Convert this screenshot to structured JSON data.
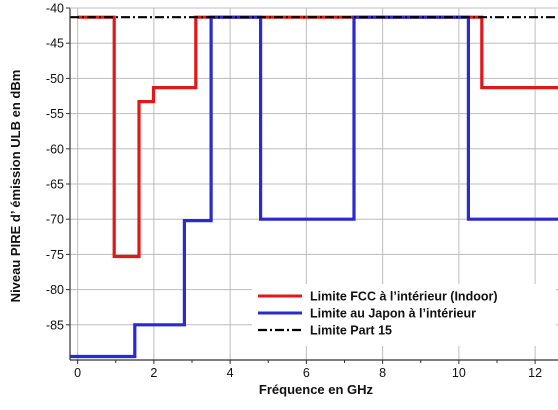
{
  "chart_data": {
    "type": "line",
    "xlabel": "Fréquence en GHz",
    "ylabel": "Niveau PIRE d’ émission ULB en dBm",
    "xlim": [
      -0.2,
      12.6
    ],
    "ylim": [
      -90,
      -40
    ],
    "x_ticks": [
      0,
      2,
      4,
      6,
      8,
      10,
      12
    ],
    "y_ticks": [
      -40,
      -45,
      -50,
      -55,
      -60,
      -65,
      -70,
      -75,
      -80,
      -85
    ],
    "x_tick_labels": [
      "0",
      "2",
      "4",
      "6",
      "8",
      "10",
      "12"
    ],
    "y_tick_labels": [
      "-40",
      "-45",
      "-50",
      "-55",
      "-60",
      "-65",
      "-70",
      "-75",
      "-80",
      "-85"
    ],
    "grid": true,
    "legend_position": "lower-right",
    "series": [
      {
        "name": "Limite FCC à l’intérieur (Indoor)",
        "color": "#e01818",
        "style": "solid",
        "points": [
          [
            0,
            -41.3
          ],
          [
            0.96,
            -41.3
          ],
          [
            0.96,
            -75.3
          ],
          [
            1.61,
            -75.3
          ],
          [
            1.61,
            -53.3
          ],
          [
            1.99,
            -53.3
          ],
          [
            1.99,
            -51.3
          ],
          [
            3.1,
            -51.3
          ],
          [
            3.1,
            -41.3
          ],
          [
            10.6,
            -41.3
          ],
          [
            10.6,
            -51.3
          ],
          [
            12.6,
            -51.3
          ]
        ]
      },
      {
        "name": "Limite au Japon à l’intérieur",
        "color": "#2a2ad0",
        "style": "solid",
        "points": [
          [
            -0.2,
            -89.5
          ],
          [
            1.5,
            -89.5
          ],
          [
            1.5,
            -85
          ],
          [
            2.8,
            -85
          ],
          [
            2.8,
            -70.2
          ],
          [
            3.5,
            -70.2
          ],
          [
            3.5,
            -41.3
          ],
          [
            4.8,
            -41.3
          ],
          [
            4.8,
            -70
          ],
          [
            7.25,
            -70
          ],
          [
            7.25,
            -41.3
          ],
          [
            10.25,
            -41.3
          ],
          [
            10.25,
            -70
          ],
          [
            12.6,
            -70
          ]
        ]
      },
      {
        "name": "Limite Part 15",
        "color": "#000000",
        "style": "dashdot",
        "points": [
          [
            -0.2,
            -41.3
          ],
          [
            12.6,
            -41.3
          ]
        ]
      }
    ]
  }
}
